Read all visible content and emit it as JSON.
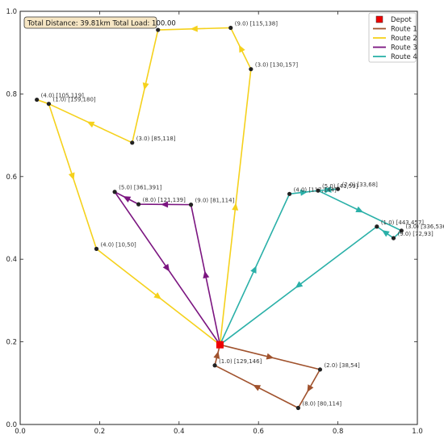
{
  "chart_data": {
    "type": "scatter",
    "title": "",
    "xlabel": "",
    "ylabel": "",
    "xlim": [
      0.0,
      1.0
    ],
    "ylim": [
      0.0,
      1.0
    ],
    "x_ticks": [
      0.0,
      0.2,
      0.4,
      0.6,
      0.8,
      1.0
    ],
    "y_ticks": [
      0.0,
      0.2,
      0.4,
      0.6,
      0.8,
      1.0
    ],
    "x_tick_labels": [
      "0.0",
      "0.2",
      "0.4",
      "0.6",
      "0.8",
      "1.0"
    ],
    "y_tick_labels": [
      "0.0",
      "0.2",
      "0.4",
      "0.6",
      "0.8",
      "1.0"
    ],
    "info_box": "Total Distance: 39.81km  Total Load: 100.00",
    "legend_position": "top-right",
    "depot": {
      "name": "Depot",
      "x": 0.503,
      "y": 0.193,
      "color": "#ee0000"
    },
    "nodes": [
      {
        "x": 0.347,
        "y": 0.955,
        "label": ""
      },
      {
        "x": 0.53,
        "y": 0.96,
        "label": "(9.0) [115,138]"
      },
      {
        "x": 0.581,
        "y": 0.86,
        "label": "(3.0) [130,157]"
      },
      {
        "x": 0.282,
        "y": 0.682,
        "label": "(3.0) [85,118]"
      },
      {
        "x": 0.042,
        "y": 0.786,
        "label": "(4.0) [105,119]"
      },
      {
        "x": 0.072,
        "y": 0.776,
        "label": "(1.0) [159,180]"
      },
      {
        "x": 0.192,
        "y": 0.425,
        "label": "(4.0) [10,50]"
      },
      {
        "x": 0.238,
        "y": 0.563,
        "label": "(5.0) [361,391]"
      },
      {
        "x": 0.298,
        "y": 0.533,
        "label": "(8.0) [121,139]"
      },
      {
        "x": 0.43,
        "y": 0.532,
        "label": "(9.0) [81,114]"
      },
      {
        "x": 0.678,
        "y": 0.558,
        "label": "(4.0) [117,144]"
      },
      {
        "x": 0.75,
        "y": 0.566,
        "label": "(5.0) [41,59]"
      },
      {
        "x": 0.8,
        "y": 0.57,
        "label": "(2.0) [33,68]"
      },
      {
        "x": 0.898,
        "y": 0.479,
        "label": "(1.0) [443,457]"
      },
      {
        "x": 0.94,
        "y": 0.451,
        "label": "(9.0) [72,93]"
      },
      {
        "x": 0.96,
        "y": 0.469,
        "label": "(3.0) [336,536]"
      },
      {
        "x": 0.49,
        "y": 0.143,
        "label": "(1.0) [129,146]"
      },
      {
        "x": 0.755,
        "y": 0.133,
        "label": "(2.0) [38,54]"
      },
      {
        "x": 0.7,
        "y": 0.04,
        "label": "(8.0) [80,114]"
      }
    ],
    "series": [
      {
        "name": "Route 1",
        "color": "#a0522d",
        "points": [
          [
            0.503,
            0.193
          ],
          [
            0.755,
            0.133
          ],
          [
            0.7,
            0.04
          ],
          [
            0.49,
            0.143
          ],
          [
            0.503,
            0.193
          ]
        ]
      },
      {
        "name": "Route 2",
        "color": "#f5d11c",
        "points": [
          [
            0.503,
            0.193
          ],
          [
            0.581,
            0.86
          ],
          [
            0.53,
            0.96
          ],
          [
            0.347,
            0.955
          ],
          [
            0.282,
            0.682
          ],
          [
            0.072,
            0.776
          ],
          [
            0.042,
            0.786
          ],
          [
            0.072,
            0.776
          ],
          [
            0.192,
            0.425
          ],
          [
            0.503,
            0.193
          ]
        ]
      },
      {
        "name": "Route 3",
        "color": "#7b1580",
        "points": [
          [
            0.503,
            0.193
          ],
          [
            0.43,
            0.532
          ],
          [
            0.298,
            0.533
          ],
          [
            0.238,
            0.563
          ],
          [
            0.503,
            0.193
          ]
        ]
      },
      {
        "name": "Route 4",
        "color": "#2ab0a8",
        "points": [
          [
            0.503,
            0.193
          ],
          [
            0.678,
            0.558
          ],
          [
            0.75,
            0.566
          ],
          [
            0.8,
            0.57
          ],
          [
            0.75,
            0.566
          ],
          [
            0.96,
            0.469
          ],
          [
            0.94,
            0.451
          ],
          [
            0.898,
            0.479
          ],
          [
            0.503,
            0.193
          ]
        ]
      }
    ]
  }
}
